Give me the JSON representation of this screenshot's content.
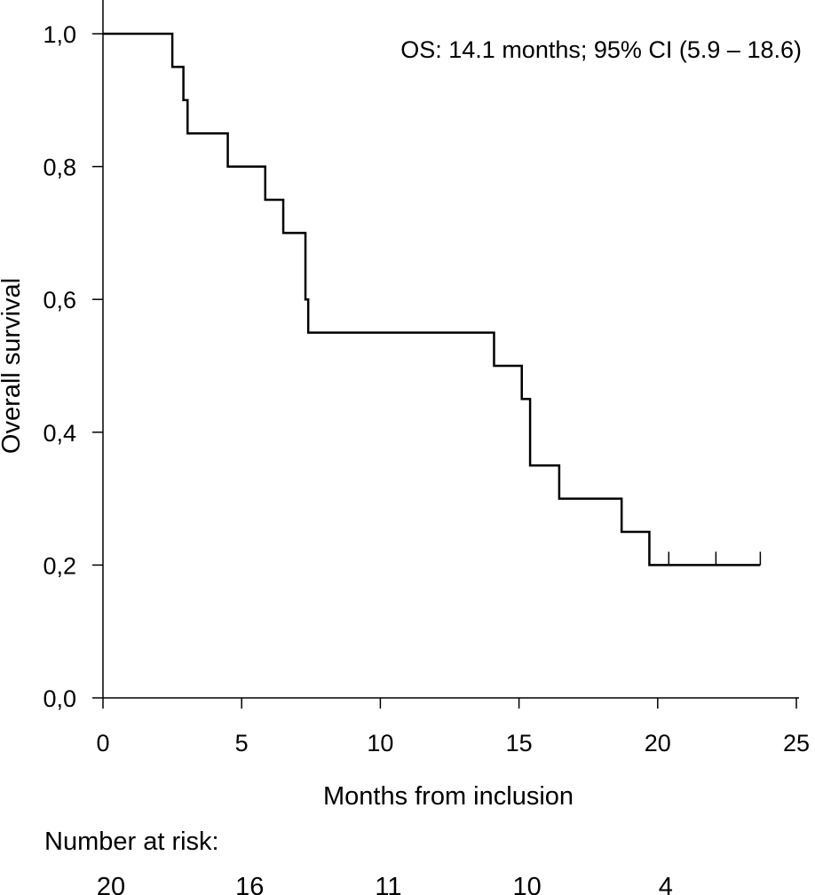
{
  "chart_data": {
    "type": "line",
    "subtype": "kaplan-meier-step",
    "title": "",
    "xlabel": "Months from inclusion",
    "ylabel": "Overall survival",
    "xlim": [
      0,
      25
    ],
    "ylim": [
      0,
      1
    ],
    "x_ticks": [
      0,
      5,
      10,
      15,
      20,
      25
    ],
    "x_tick_labels": [
      "0",
      "5",
      "10",
      "15",
      "20",
      "25"
    ],
    "y_ticks": [
      0,
      0.2,
      0.4,
      0.6,
      0.8,
      1.0
    ],
    "y_tick_labels": [
      "0,0",
      "0,2",
      "0,4",
      "0,6",
      "0,8",
      "1,0"
    ],
    "grid": false,
    "annotation": "OS: 14.1 months; 95% CI (5.9 – 18.6)",
    "series": [
      {
        "steps": [
          {
            "x": 0,
            "y": 1.0
          },
          {
            "x": 2.5,
            "y": 0.95
          },
          {
            "x": 2.9,
            "y": 0.9
          },
          {
            "x": 3.05,
            "y": 0.85
          },
          {
            "x": 4.5,
            "y": 0.8
          },
          {
            "x": 5.85,
            "y": 0.75
          },
          {
            "x": 6.5,
            "y": 0.7
          },
          {
            "x": 7.3,
            "y": 0.6
          },
          {
            "x": 7.4,
            "y": 0.55
          },
          {
            "x": 14.1,
            "y": 0.5
          },
          {
            "x": 15.1,
            "y": 0.45
          },
          {
            "x": 15.4,
            "y": 0.35
          },
          {
            "x": 16.45,
            "y": 0.3
          },
          {
            "x": 18.7,
            "y": 0.25
          },
          {
            "x": 19.7,
            "y": 0.2
          }
        ],
        "end_x": 23.7,
        "censored": [
          {
            "x": 20.4,
            "y": 0.2
          },
          {
            "x": 22.1,
            "y": 0.2
          },
          {
            "x": 23.7,
            "y": 0.2
          }
        ],
        "color": "#000000"
      }
    ],
    "risk_table": {
      "title": "Number at risk:",
      "times": [
        0,
        5,
        10,
        15,
        20
      ],
      "values": [
        "20",
        "16",
        "11",
        "10",
        "4"
      ]
    }
  }
}
